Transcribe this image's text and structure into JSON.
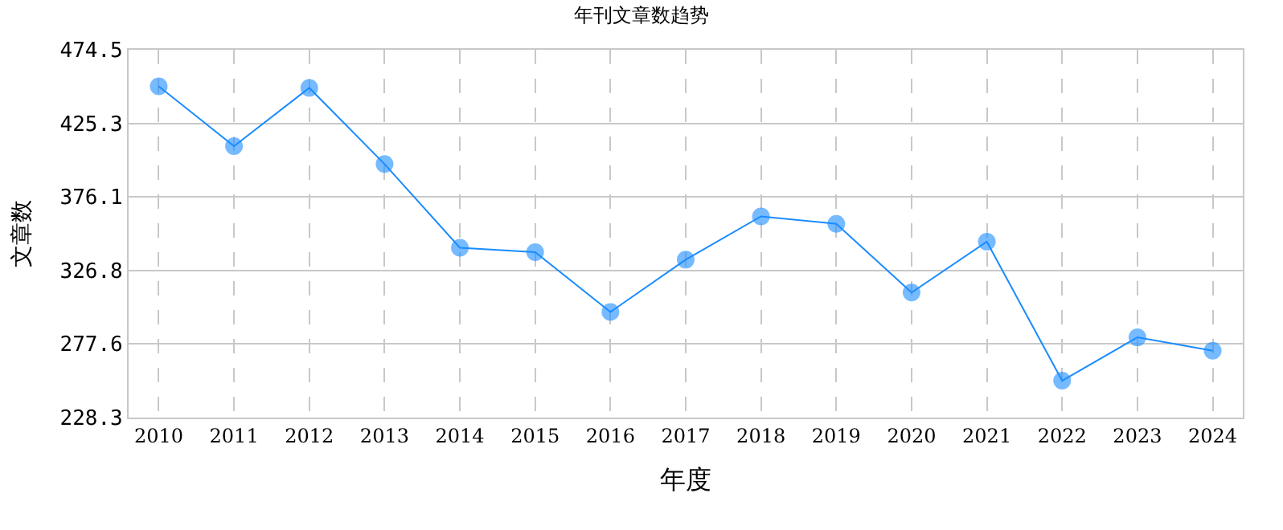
{
  "chart_data": {
    "type": "line",
    "title": "年刊文章数趋势",
    "xlabel": "年度",
    "ylabel": "文章数",
    "categories": [
      "2010",
      "2011",
      "2012",
      "2013",
      "2014",
      "2015",
      "2016",
      "2017",
      "2018",
      "2019",
      "2020",
      "2021",
      "2022",
      "2023",
      "2024"
    ],
    "series": [
      {
        "color": "#1a8cff",
        "values": [
          450,
          410,
          449,
          398,
          342,
          339,
          299,
          334,
          363,
          358,
          312,
          346,
          253,
          282,
          273
        ]
      }
    ],
    "ylim": [
      228.3,
      474.5
    ],
    "yticks": [
      228.3,
      277.6,
      326.8,
      376.1,
      425.3,
      474.5
    ],
    "grid": true,
    "marker": "circle",
    "line_style": "solid"
  }
}
